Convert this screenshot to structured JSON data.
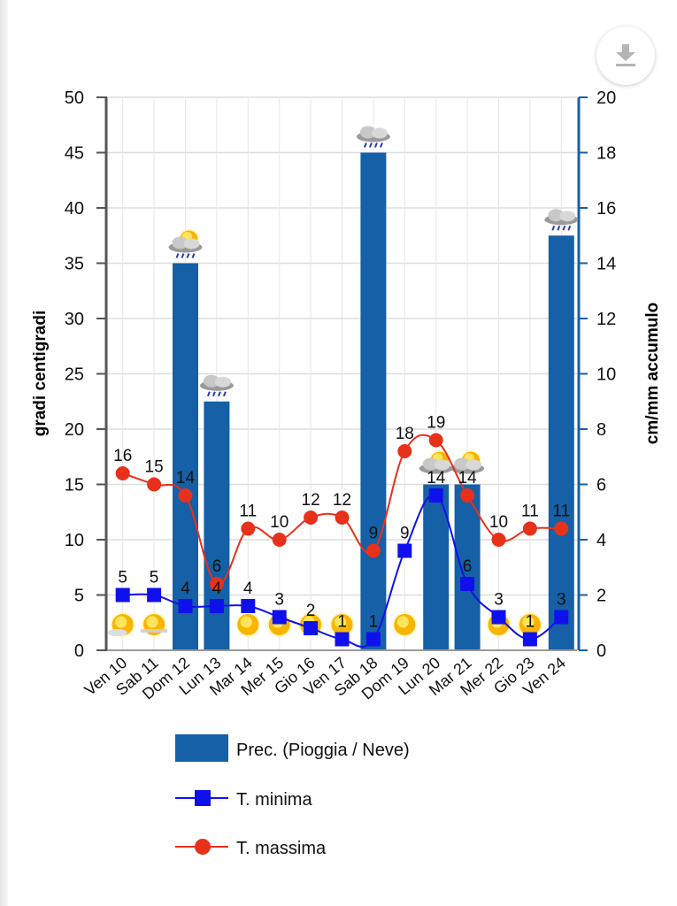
{
  "download_button": {
    "icon": "download-icon"
  },
  "colors": {
    "bars": "#1560a6",
    "min_line": "#1010ee",
    "max_line": "#e8311a",
    "right_axis": "#1560a6",
    "left_axis": "#555555",
    "grid": "#dddddd"
  },
  "chart_data": {
    "type": "bar+line",
    "title": "",
    "categories": [
      "Ven 10",
      "Sab 11",
      "Dom 12",
      "Lun 13",
      "Mar 14",
      "Mer 15",
      "Gio 16",
      "Ven 17",
      "Sab 18",
      "Dom 19",
      "Lun 20",
      "Mar 21",
      "Mer 22",
      "Gio 23",
      "Ven 24"
    ],
    "left_axis": {
      "label": "gradi centigradi",
      "min": 0,
      "max": 50,
      "ticks": [
        "0",
        "5",
        "10",
        "15",
        "20",
        "25",
        "30",
        "35",
        "40",
        "45",
        "50"
      ]
    },
    "right_axis": {
      "label": "cm/mm accumulo",
      "min": 0,
      "max": 20,
      "ticks": [
        "0",
        "2",
        "4",
        "6",
        "8",
        "10",
        "12",
        "14",
        "16",
        "18",
        "20"
      ]
    },
    "grid": true,
    "legend_position": "bottom",
    "series": [
      {
        "name": "Prec. (Pioggia / Neve)",
        "type": "bar",
        "axis": "right",
        "values": [
          0,
          0,
          14,
          9,
          0,
          0,
          0,
          0,
          18,
          0,
          6,
          6,
          0,
          0,
          15
        ]
      },
      {
        "name": "T. minima",
        "type": "line",
        "marker": "square",
        "axis": "left",
        "values": [
          5,
          5,
          4,
          4,
          4,
          3,
          2,
          1,
          1,
          9,
          14,
          6,
          3,
          1,
          3
        ]
      },
      {
        "name": "T. massima",
        "type": "line",
        "marker": "circle",
        "axis": "left",
        "values": [
          16,
          15,
          14,
          6,
          11,
          10,
          12,
          12,
          9,
          18,
          19,
          14,
          10,
          11,
          11
        ]
      }
    ],
    "weather_icons": [
      "sun-cloud",
      "sun-haze",
      "sun-cloud-rain",
      "cloud-rain",
      "sun",
      "sun",
      "sun",
      "sun",
      "cloud-rain",
      "sun",
      "sun-cloud",
      "sun-cloud",
      "sun",
      "sun",
      "cloud-rain"
    ]
  }
}
